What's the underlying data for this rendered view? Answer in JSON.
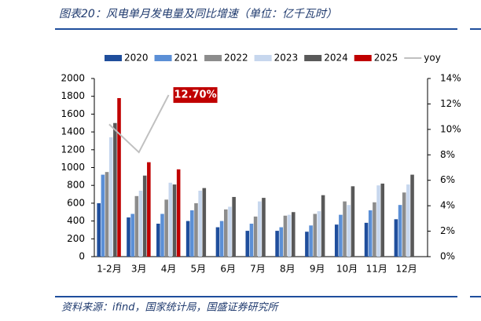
{
  "chart_data": {
    "type": "bar",
    "title": "图表20：风电单月发电量及同比增速（单位：亿千瓦时）",
    "source": "资料来源：ifind，国家统计局，国盛证券研究所",
    "categories": [
      "1-2月",
      "3月",
      "4月",
      "5月",
      "6月",
      "7月",
      "8月",
      "9月",
      "10月",
      "11月",
      "12月"
    ],
    "series": [
      {
        "name": "2020",
        "color": "#1f4e9c",
        "values": [
          600,
          440,
          370,
          400,
          330,
          290,
          290,
          280,
          360,
          380,
          420
        ]
      },
      {
        "name": "2021",
        "color": "#5b8fd6",
        "values": [
          920,
          480,
          480,
          520,
          400,
          370,
          330,
          350,
          470,
          520,
          580
        ]
      },
      {
        "name": "2022",
        "color": "#8c8c8c",
        "values": [
          950,
          680,
          640,
          600,
          530,
          450,
          460,
          480,
          620,
          610,
          720
        ]
      },
      {
        "name": "2023",
        "color": "#c7d7ee",
        "values": [
          1340,
          740,
          830,
          740,
          560,
          620,
          470,
          510,
          580,
          800,
          810
        ]
      },
      {
        "name": "2024",
        "color": "#595959",
        "values": [
          1500,
          910,
          810,
          770,
          670,
          660,
          500,
          690,
          790,
          820,
          920
        ]
      },
      {
        "name": "2025",
        "color": "#c00000",
        "values": [
          1780,
          1060,
          980,
          null,
          null,
          null,
          null,
          null,
          null,
          null,
          null
        ]
      },
      {
        "name": "yoy",
        "color": "#c0c0c0",
        "type": "line",
        "axis": "y2",
        "values": [
          10.4,
          8.2,
          12.7,
          null,
          null,
          null,
          null,
          null,
          null,
          null,
          null
        ],
        "value_labels": [
          null,
          null,
          "12.70%",
          null,
          null,
          null,
          null,
          null,
          null,
          null,
          null
        ]
      }
    ],
    "ylim": [
      0,
      2000
    ],
    "yticks": [
      0,
      200,
      400,
      600,
      800,
      1000,
      1200,
      1400,
      1600,
      1800,
      2000
    ],
    "y2lim": [
      0,
      14
    ],
    "y2ticks": [
      {
        "value": 0,
        "label": "0%"
      },
      {
        "value": 2,
        "label": "2%"
      },
      {
        "value": 4,
        "label": "4%"
      },
      {
        "value": 6,
        "label": "6%"
      },
      {
        "value": 8,
        "label": "8%"
      },
      {
        "value": 10,
        "label": "10%"
      },
      {
        "value": 12,
        "label": "12%"
      },
      {
        "value": 14,
        "label": "14%"
      }
    ],
    "legend": "top"
  }
}
